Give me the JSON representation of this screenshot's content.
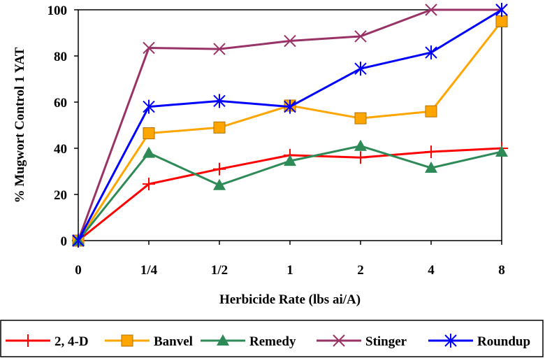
{
  "chart_data": {
    "type": "line",
    "categories": [
      "0",
      "1/4",
      "1/2",
      "1",
      "2",
      "4",
      "8"
    ],
    "xlabel": "Herbicide Rate (lbs ai/A)",
    "ylabel": "% Mugwort Control 1 YAT",
    "ylim": [
      0,
      100
    ],
    "yticks": [
      "0",
      "20",
      "40",
      "60",
      "80",
      "100"
    ],
    "grid": false,
    "legend_position": "bottom",
    "series": [
      {
        "name": "2, 4-D",
        "color": "#ff0000",
        "marker": "plus",
        "values": [
          0,
          24.5,
          31,
          37,
          36,
          38.5,
          40
        ]
      },
      {
        "name": "Banvel",
        "color": "#ffa500",
        "marker": "square",
        "values": [
          0,
          46.5,
          49,
          58.5,
          53,
          56,
          95
        ]
      },
      {
        "name": "Remedy",
        "color": "#2e8b57",
        "marker": "triangle",
        "values": [
          0,
          38,
          24,
          34.5,
          41,
          31.5,
          38.5
        ]
      },
      {
        "name": "Stinger",
        "color": "#993366",
        "marker": "x",
        "values": [
          0,
          83.5,
          83,
          86.5,
          88.5,
          100,
          100
        ]
      },
      {
        "name": "Roundup",
        "color": "#0000ff",
        "marker": "asterisk",
        "values": [
          0,
          58,
          60.5,
          58,
          74.5,
          81.5,
          100
        ]
      }
    ]
  }
}
